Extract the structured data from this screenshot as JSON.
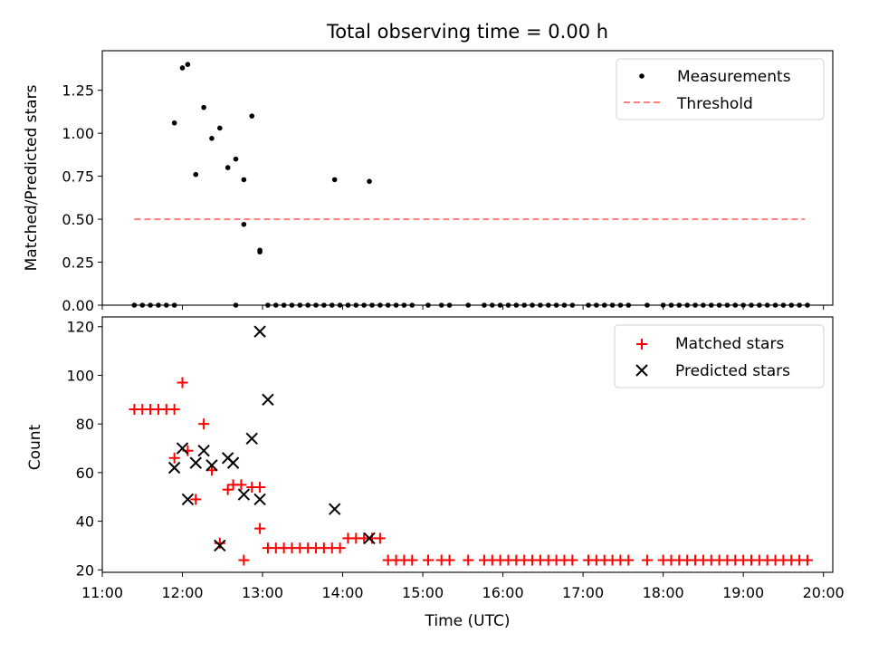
{
  "chart_data": [
    {
      "type": "scatter",
      "title": "Total observing time = 0.00 h",
      "xlabel": "",
      "ylabel": "Matched/Predicted stars",
      "xlim": [
        "11:00",
        "20:07"
      ],
      "ylim": [
        0,
        1.48
      ],
      "yticks": [
        0.0,
        0.25,
        0.5,
        0.75,
        1.0,
        1.25
      ],
      "ytick_labels": [
        "0.00",
        "0.25",
        "0.50",
        "0.75",
        "1.00",
        "1.25"
      ],
      "grid": false,
      "legend": "top-right",
      "colors": {
        "measurements": "#000000",
        "threshold": "#ff7f7f"
      },
      "series": [
        {
          "name": "Measurements",
          "kind": "scatter",
          "x": [
            "11:24",
            "11:30",
            "11:36",
            "11:42",
            "11:48",
            "11:54",
            "11:54",
            "12:00",
            "12:04",
            "12:10",
            "12:16",
            "12:22",
            "12:28",
            "12:34",
            "12:40",
            "12:40",
            "12:46",
            "12:46",
            "12:52",
            "12:58",
            "12:58",
            "13:04",
            "13:10",
            "13:16",
            "13:22",
            "13:28",
            "13:34",
            "13:40",
            "13:46",
            "13:52",
            "13:58",
            "13:54",
            "14:04",
            "14:10",
            "14:16",
            "14:22",
            "14:20",
            "14:28",
            "14:34",
            "14:40",
            "14:46",
            "14:52",
            "15:04",
            "15:14",
            "15:20",
            "15:34",
            "15:46",
            "15:52",
            "15:58",
            "16:04",
            "16:10",
            "16:16",
            "16:22",
            "16:28",
            "16:34",
            "16:40",
            "16:46",
            "16:52",
            "17:04",
            "17:10",
            "17:16",
            "17:22",
            "17:28",
            "17:34",
            "17:48",
            "18:00",
            "18:06",
            "18:12",
            "18:18",
            "18:24",
            "18:30",
            "18:36",
            "18:42",
            "18:48",
            "18:54",
            "19:00",
            "19:06",
            "19:12",
            "19:18",
            "19:24",
            "19:30",
            "19:36",
            "19:42",
            "19:48"
          ],
          "y": [
            0,
            0,
            0,
            0,
            0,
            0,
            1.06,
            1.38,
            1.4,
            0.76,
            1.15,
            0.97,
            1.03,
            0.8,
            0.85,
            0,
            0.73,
            0.47,
            1.1,
            0.31,
            0.32,
            0,
            0,
            0,
            0,
            0,
            0,
            0,
            0,
            0,
            0,
            0.73,
            0,
            0,
            0,
            0,
            0.72,
            0,
            0,
            0,
            0,
            0,
            0,
            0,
            0,
            0,
            0,
            0,
            0,
            0,
            0,
            0,
            0,
            0,
            0,
            0,
            0,
            0,
            0,
            0,
            0,
            0,
            0,
            0,
            0,
            0,
            0,
            0,
            0,
            0,
            0,
            0,
            0,
            0,
            0,
            0,
            0,
            0,
            0,
            0,
            0,
            0,
            0,
            0
          ]
        },
        {
          "name": "Threshold",
          "kind": "line",
          "style": "dashed",
          "x": [
            "11:24",
            "19:46"
          ],
          "y": [
            0.5,
            0.5
          ]
        }
      ]
    },
    {
      "type": "scatter",
      "title": "",
      "xlabel": "Time (UTC)",
      "ylabel": "Count",
      "xlim": [
        "11:00",
        "20:07"
      ],
      "xticks": [
        "11:00",
        "12:00",
        "13:00",
        "14:00",
        "15:00",
        "16:00",
        "17:00",
        "18:00",
        "19:00",
        "20:00"
      ],
      "ylim": [
        19,
        124
      ],
      "yticks": [
        20,
        40,
        60,
        80,
        100,
        120
      ],
      "ytick_labels": [
        "20",
        "40",
        "60",
        "80",
        "100",
        "120"
      ],
      "grid": false,
      "legend": "top-right",
      "colors": {
        "matched": "#ff0000",
        "predicted": "#000000"
      },
      "series": [
        {
          "name": "Matched stars",
          "marker": "+",
          "x": [
            "11:24",
            "11:30",
            "11:36",
            "11:42",
            "11:48",
            "11:54",
            "11:54",
            "12:00",
            "12:04",
            "12:10",
            "12:16",
            "12:22",
            "12:28",
            "12:34",
            "12:38",
            "12:44",
            "12:46",
            "12:52",
            "12:58",
            "12:58",
            "13:04",
            "13:10",
            "13:16",
            "13:22",
            "13:28",
            "13:34",
            "13:40",
            "13:46",
            "13:52",
            "13:58",
            "14:04",
            "14:10",
            "14:16",
            "14:22",
            "14:28",
            "14:34",
            "14:40",
            "14:46",
            "14:52",
            "15:04",
            "15:14",
            "15:20",
            "15:34",
            "15:46",
            "15:52",
            "15:58",
            "16:04",
            "16:10",
            "16:16",
            "16:22",
            "16:28",
            "16:34",
            "16:40",
            "16:46",
            "16:52",
            "17:04",
            "17:10",
            "17:16",
            "17:22",
            "17:28",
            "17:34",
            "17:48",
            "18:00",
            "18:06",
            "18:12",
            "18:18",
            "18:24",
            "18:30",
            "18:36",
            "18:42",
            "18:48",
            "18:54",
            "19:00",
            "19:06",
            "19:12",
            "19:18",
            "19:24",
            "19:30",
            "19:36",
            "19:42",
            "19:48"
          ],
          "y": [
            86,
            86,
            86,
            86,
            86,
            86,
            66,
            97,
            69,
            49,
            80,
            61,
            31,
            53,
            55,
            55,
            24,
            54,
            54,
            37,
            29,
            29,
            29,
            29,
            29,
            29,
            29,
            29,
            29,
            29,
            33,
            33,
            33,
            33,
            33,
            24,
            24,
            24,
            24,
            24,
            24,
            24,
            24,
            24,
            24,
            24,
            24,
            24,
            24,
            24,
            24,
            24,
            24,
            24,
            24,
            24,
            24,
            24,
            24,
            24,
            24,
            24,
            24,
            24,
            24,
            24,
            24,
            24,
            24,
            24,
            24,
            24,
            24,
            24,
            24,
            24,
            24,
            24,
            24,
            24,
            24
          ]
        },
        {
          "name": "Predicted stars",
          "marker": "x",
          "x": [
            "11:54",
            "12:00",
            "12:04",
            "12:10",
            "12:16",
            "12:22",
            "12:28",
            "12:34",
            "12:38",
            "12:46",
            "12:52",
            "12:58",
            "12:58",
            "13:04",
            "13:54",
            "14:20"
          ],
          "y": [
            62,
            70,
            49,
            64,
            69,
            63,
            30,
            66,
            64,
            51,
            74,
            49,
            118,
            90,
            45,
            33
          ]
        }
      ]
    }
  ]
}
